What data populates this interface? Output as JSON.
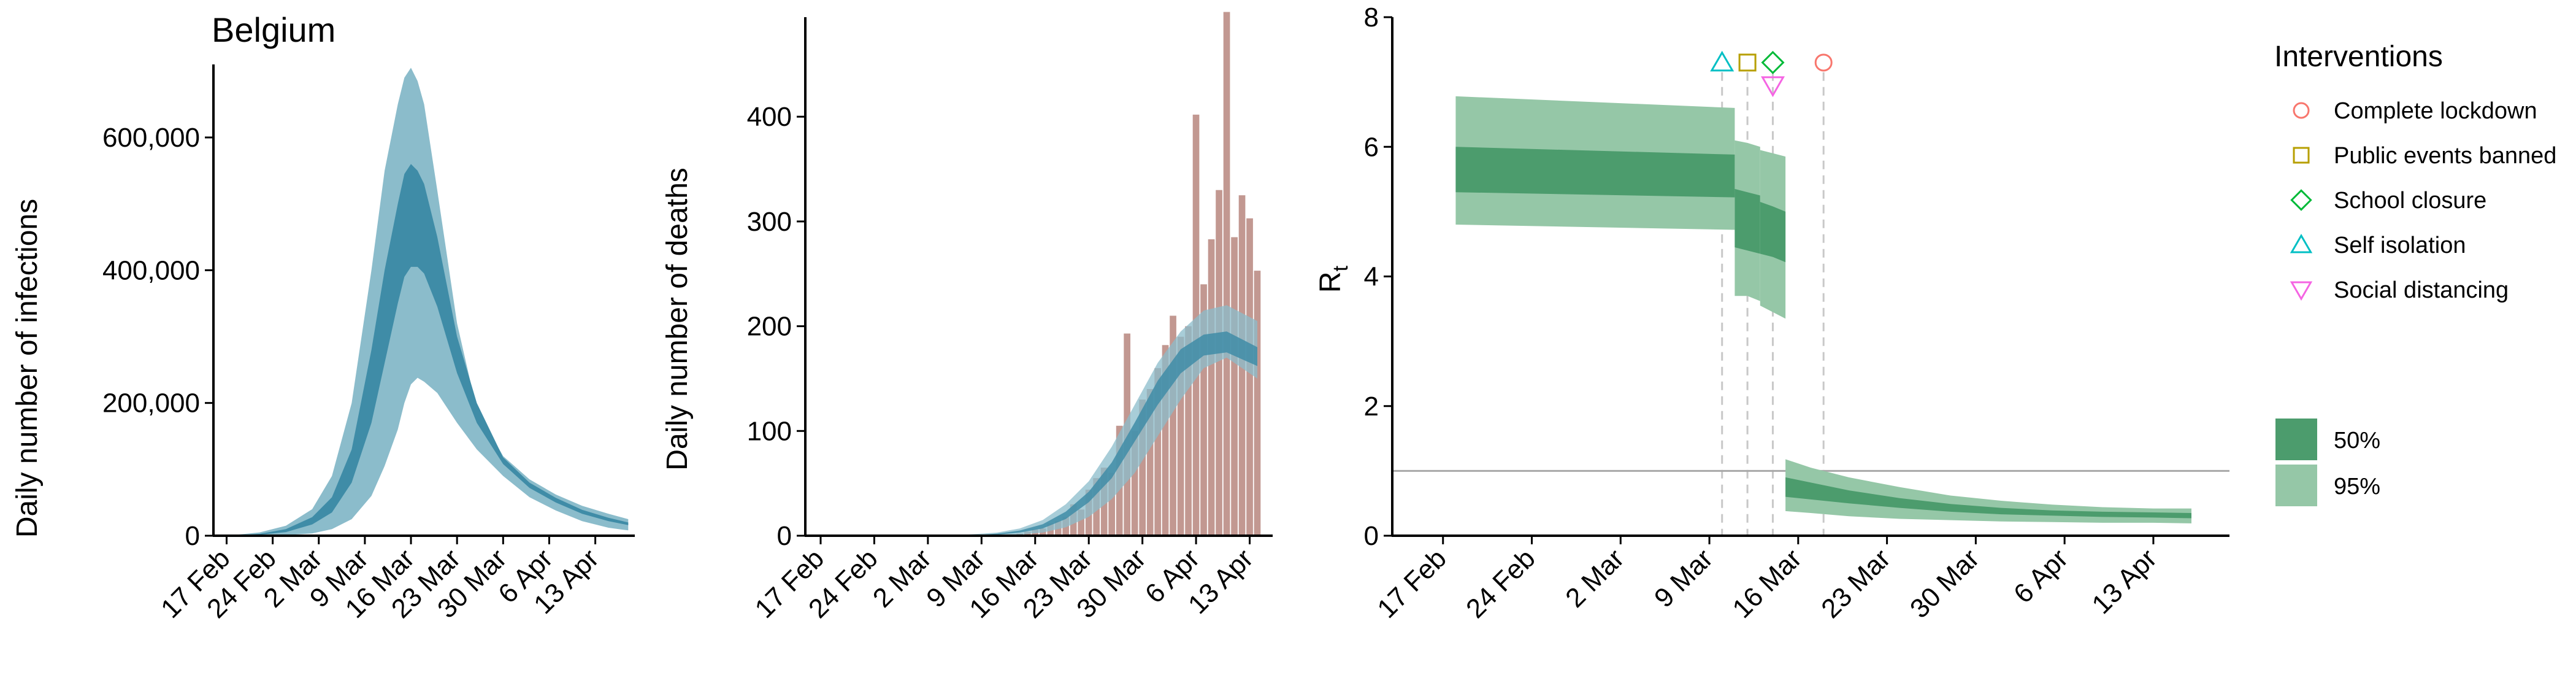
{
  "colors": {
    "band95": "#8bbccb",
    "band50": "#3f8ca7",
    "bars": "#c29891",
    "rt95": "#95c7a7",
    "rt50": "#4c9c6d",
    "vline": "#c8c8c8",
    "refline": "#a8a8a8",
    "complete_lockdown": "#f8766d",
    "public_events_banned": "#b79f00",
    "school_closure": "#00ba38",
    "self_isolation": "#00bfc4",
    "social_distancing": "#f564e3"
  },
  "chart_data": [
    {
      "type": "area",
      "title": "Belgium",
      "xlabel": "",
      "ylabel": "Daily number of infections",
      "x_ticks": [
        "17 Feb",
        "24 Feb",
        "2 Mar",
        "9 Mar",
        "16 Mar",
        "23 Mar",
        "30 Mar",
        "6 Apr",
        "13 Apr"
      ],
      "y_ticks": [
        "0",
        "200,000",
        "400,000",
        "600,000"
      ],
      "xlim": [
        "2020-02-15",
        "2020-04-19"
      ],
      "ylim": [
        0,
        710000
      ],
      "x": [
        "2020-02-18",
        "2020-02-22",
        "2020-02-26",
        "2020-03-01",
        "2020-03-04",
        "2020-03-07",
        "2020-03-10",
        "2020-03-12",
        "2020-03-14",
        "2020-03-15",
        "2020-03-16",
        "2020-03-17",
        "2020-03-18",
        "2020-03-20",
        "2020-03-23",
        "2020-03-26",
        "2020-03-30",
        "2020-04-03",
        "2020-04-07",
        "2020-04-11",
        "2020-04-15",
        "2020-04-18"
      ],
      "series": [
        {
          "name": "95%",
          "lower": [
            0,
            200,
            900,
            3500,
            10000,
            25000,
            60000,
            105000,
            160000,
            200000,
            228000,
            238000,
            232000,
            215000,
            170000,
            130000,
            90000,
            58000,
            38000,
            22000,
            12000,
            8000
          ],
          "upper": [
            1000,
            5000,
            15000,
            40000,
            90000,
            200000,
            400000,
            550000,
            650000,
            690000,
            705000,
            685000,
            650000,
            520000,
            320000,
            190000,
            120000,
            85000,
            62000,
            45000,
            33000,
            25000
          ]
        },
        {
          "name": "50%",
          "lower": [
            200,
            1500,
            5500,
            17000,
            35000,
            80000,
            170000,
            260000,
            350000,
            390000,
            405000,
            405000,
            395000,
            345000,
            245000,
            170000,
            108000,
            72000,
            50000,
            33000,
            22000,
            16000
          ],
          "upper": [
            400,
            2800,
            10000,
            28000,
            58000,
            130000,
            280000,
            400000,
            500000,
            545000,
            560000,
            550000,
            530000,
            450000,
            300000,
            200000,
            118000,
            80000,
            57000,
            39000,
            27000,
            20000
          ]
        }
      ]
    },
    {
      "type": "bar",
      "title": "",
      "xlabel": "",
      "ylabel": "Daily number of deaths",
      "x_ticks": [
        "17 Feb",
        "24 Feb",
        "2 Mar",
        "9 Mar",
        "16 Mar",
        "23 Mar",
        "30 Mar",
        "6 Apr",
        "13 Apr"
      ],
      "y_ticks": [
        "0",
        "100",
        "200",
        "300",
        "400"
      ],
      "xlim": [
        "2020-02-15",
        "2020-04-16"
      ],
      "ylim": [
        0,
        495
      ],
      "bars": {
        "dates": [
          "2020-03-14",
          "2020-03-15",
          "2020-03-16",
          "2020-03-17",
          "2020-03-18",
          "2020-03-19",
          "2020-03-20",
          "2020-03-21",
          "2020-03-22",
          "2020-03-23",
          "2020-03-24",
          "2020-03-25",
          "2020-03-26",
          "2020-03-27",
          "2020-03-28",
          "2020-03-29",
          "2020-03-30",
          "2020-03-31",
          "2020-04-01",
          "2020-04-02",
          "2020-04-03",
          "2020-04-04",
          "2020-04-05",
          "2020-04-06",
          "2020-04-07",
          "2020-04-08",
          "2020-04-09",
          "2020-04-10",
          "2020-04-11",
          "2020-04-12",
          "2020-04-13",
          "2020-04-14"
        ],
        "values": [
          2,
          4,
          6,
          7,
          12,
          14,
          18,
          30,
          25,
          44,
          55,
          65,
          60,
          105,
          193,
          100,
          130,
          140,
          160,
          182,
          210,
          190,
          200,
          402,
          240,
          283,
          330,
          500,
          285,
          325,
          303,
          253
        ]
      },
      "x": [
        "2020-03-01",
        "2020-03-07",
        "2020-03-11",
        "2020-03-14",
        "2020-03-17",
        "2020-03-20",
        "2020-03-23",
        "2020-03-26",
        "2020-03-29",
        "2020-04-01",
        "2020-04-04",
        "2020-04-07",
        "2020-04-10",
        "2020-04-14"
      ],
      "series": [
        {
          "name": "95%",
          "lower": [
            0,
            0,
            0,
            1,
            3,
            8,
            18,
            35,
            60,
            95,
            130,
            160,
            170,
            150
          ],
          "upper": [
            0,
            1,
            3,
            7,
            15,
            30,
            52,
            85,
            125,
            165,
            195,
            215,
            220,
            205
          ]
        },
        {
          "name": "50%",
          "lower": [
            0,
            0,
            1,
            3,
            7,
            16,
            32,
            55,
            90,
            125,
            155,
            172,
            175,
            162
          ],
          "upper": [
            0,
            0,
            2,
            5,
            11,
            23,
            42,
            70,
            108,
            148,
            178,
            192,
            195,
            180
          ]
        }
      ]
    },
    {
      "type": "area",
      "title": "",
      "xlabel": "",
      "ylabel": "R",
      "ylabel_subscript": "t",
      "x_ticks": [
        "17 Feb",
        "24 Feb",
        "2 Mar",
        "9 Mar",
        "16 Mar",
        "23 Mar",
        "30 Mar",
        "6 Apr",
        "13 Apr"
      ],
      "y_ticks": [
        "0",
        "2",
        "4",
        "6",
        "8"
      ],
      "xlim": [
        "2020-02-13",
        "2020-04-19"
      ],
      "ylim": [
        0,
        8
      ],
      "hline": 1,
      "segments": [
        {
          "x": [
            "2020-02-18",
            "2020-03-11"
          ],
          "lo95": [
            4.8,
            4.72
          ],
          "hi95": [
            6.78,
            6.6
          ],
          "lo50": [
            5.3,
            5.22
          ],
          "hi50": [
            6.0,
            5.88
          ]
        },
        {
          "x": [
            "2020-03-11",
            "2020-03-12",
            "2020-03-13"
          ],
          "lo95": [
            3.7,
            3.7,
            3.62
          ],
          "hi95": [
            6.1,
            6.06,
            6.0
          ],
          "lo50": [
            4.45,
            4.4,
            4.35
          ],
          "hi50": [
            5.35,
            5.3,
            5.25
          ]
        },
        {
          "x": [
            "2020-03-13",
            "2020-03-14",
            "2020-03-15"
          ],
          "lo95": [
            3.55,
            3.45,
            3.35
          ],
          "hi95": [
            5.95,
            5.9,
            5.85
          ],
          "lo50": [
            4.35,
            4.3,
            4.22
          ],
          "hi50": [
            5.15,
            5.08,
            5.0
          ]
        },
        {
          "x": [
            "2020-03-15",
            "2020-03-17",
            "2020-03-20",
            "2020-03-24",
            "2020-03-28",
            "2020-04-01",
            "2020-04-05",
            "2020-04-09",
            "2020-04-13",
            "2020-04-16"
          ],
          "lo95": [
            0.38,
            0.35,
            0.3,
            0.26,
            0.24,
            0.22,
            0.21,
            0.2,
            0.2,
            0.19
          ],
          "hi95": [
            1.18,
            1.05,
            0.9,
            0.75,
            0.62,
            0.54,
            0.48,
            0.44,
            0.42,
            0.42
          ],
          "lo50": [
            0.6,
            0.56,
            0.5,
            0.43,
            0.37,
            0.33,
            0.31,
            0.29,
            0.28,
            0.27
          ],
          "hi50": [
            0.9,
            0.82,
            0.7,
            0.58,
            0.49,
            0.43,
            0.39,
            0.37,
            0.36,
            0.35
          ]
        }
      ],
      "interventions": [
        {
          "name": "Self isolation",
          "date": "2020-03-10",
          "marker": "triangle-up",
          "color_key": "self_isolation",
          "y": 7.3
        },
        {
          "name": "Public events banned",
          "date": "2020-03-12",
          "marker": "square",
          "color_key": "public_events_banned",
          "y": 7.3
        },
        {
          "name": "School closure",
          "date": "2020-03-14",
          "marker": "diamond",
          "color_key": "school_closure",
          "y": 7.3
        },
        {
          "name": "Social distancing",
          "date": "2020-03-14",
          "marker": "triangle-down",
          "color_key": "social_distancing",
          "y": 6.95
        },
        {
          "name": "Complete lockdown",
          "date": "2020-03-18",
          "marker": "circle",
          "color_key": "complete_lockdown",
          "y": 7.3
        }
      ],
      "legend": {
        "title": "Interventions",
        "items": [
          {
            "label": "Complete lockdown",
            "marker": "circle",
            "color_key": "complete_lockdown"
          },
          {
            "label": "Public events banned",
            "marker": "square",
            "color_key": "public_events_banned"
          },
          {
            "label": "School closure",
            "marker": "diamond",
            "color_key": "school_closure"
          },
          {
            "label": "Self isolation",
            "marker": "triangle-up",
            "color_key": "self_isolation"
          },
          {
            "label": "Social distancing",
            "marker": "triangle-down",
            "color_key": "social_distancing"
          }
        ],
        "bands": [
          {
            "label": "50%",
            "color_key": "rt50"
          },
          {
            "label": "95%",
            "color_key": "rt95"
          }
        ]
      }
    }
  ]
}
